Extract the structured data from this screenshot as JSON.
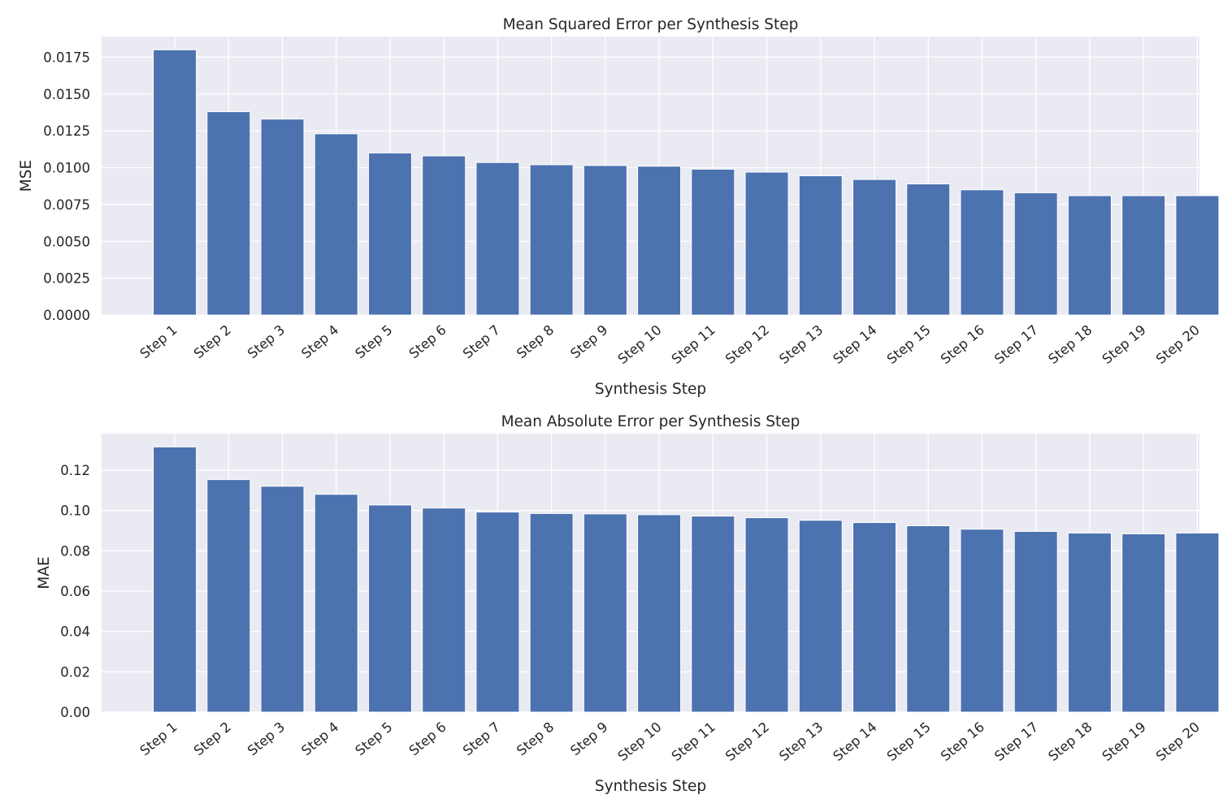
{
  "chart_data": [
    {
      "type": "bar",
      "title": "Mean Squared Error per Synthesis Step",
      "xlabel": "Synthesis Step",
      "ylabel": "MSE",
      "categories": [
        "Step 1",
        "Step 2",
        "Step 3",
        "Step 4",
        "Step 5",
        "Step 6",
        "Step 7",
        "Step 8",
        "Step 9",
        "Step 10",
        "Step 11",
        "Step 12",
        "Step 13",
        "Step 14",
        "Step 15",
        "Step 16",
        "Step 17",
        "Step 18",
        "Step 19",
        "Step 20"
      ],
      "values": [
        0.018,
        0.0138,
        0.0133,
        0.0123,
        0.011,
        0.0108,
        0.01035,
        0.0102,
        0.01015,
        0.0101,
        0.0099,
        0.0097,
        0.00945,
        0.0092,
        0.0089,
        0.0085,
        0.0083,
        0.0081,
        0.0081,
        0.0081
      ],
      "ylim": [
        0,
        0.0189
      ],
      "yticks": [
        "0.0000",
        "0.0025",
        "0.0050",
        "0.0075",
        "0.0100",
        "0.0125",
        "0.0150",
        "0.0175"
      ],
      "grid": true,
      "bar_color": "#4c72b0",
      "background_color": "#eaeaf2"
    },
    {
      "type": "bar",
      "title": "Mean Absolute Error per Synthesis Step",
      "xlabel": "Synthesis Step",
      "ylabel": "MAE",
      "categories": [
        "Step 1",
        "Step 2",
        "Step 3",
        "Step 4",
        "Step 5",
        "Step 6",
        "Step 7",
        "Step 8",
        "Step 9",
        "Step 10",
        "Step 11",
        "Step 12",
        "Step 13",
        "Step 14",
        "Step 15",
        "Step 16",
        "Step 17",
        "Step 18",
        "Step 19",
        "Step 20"
      ],
      "values": [
        0.1315,
        0.1153,
        0.112,
        0.108,
        0.1027,
        0.1012,
        0.0992,
        0.0985,
        0.0983,
        0.0979,
        0.0972,
        0.0964,
        0.0951,
        0.094,
        0.0924,
        0.0907,
        0.0896,
        0.0888,
        0.0884,
        0.0888
      ],
      "ylim": [
        0,
        0.1381
      ],
      "yticks": [
        "0.00",
        "0.02",
        "0.04",
        "0.06",
        "0.08",
        "0.10",
        "0.12"
      ],
      "grid": true,
      "bar_color": "#4c72b0",
      "background_color": "#eaeaf2"
    }
  ]
}
